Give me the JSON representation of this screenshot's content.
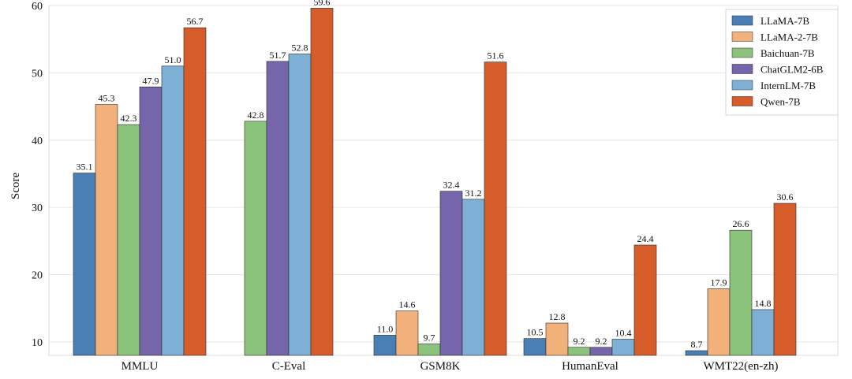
{
  "chart_data": {
    "type": "bar",
    "title": "",
    "xlabel": "",
    "ylabel": "Score",
    "ylim": [
      8,
      60
    ],
    "yticks": [
      10,
      20,
      30,
      40,
      50,
      60
    ],
    "grid": true,
    "legend_position": "top-right",
    "categories": [
      "MMLU",
      "C-Eval",
      "GSM8K",
      "HumanEval",
      "WMT22(en-zh)"
    ],
    "series": [
      {
        "name": "LLaMA-7B",
        "color": "#4a7fb5",
        "values": [
          35.1,
          null,
          11.0,
          10.5,
          8.7
        ]
      },
      {
        "name": "LLaMA-2-7B",
        "color": "#f2b07a",
        "values": [
          45.3,
          null,
          14.6,
          12.8,
          17.9
        ]
      },
      {
        "name": "Baichuan-7B",
        "color": "#8cc37c",
        "values": [
          42.3,
          42.8,
          9.7,
          9.2,
          26.6
        ]
      },
      {
        "name": "ChatGLM2-6B",
        "color": "#7566ab",
        "values": [
          47.9,
          51.7,
          32.4,
          9.2,
          null
        ]
      },
      {
        "name": "InternLM-7B",
        "color": "#7eb0d6",
        "values": [
          51.0,
          52.8,
          31.2,
          10.4,
          14.8
        ]
      },
      {
        "name": "Qwen-7B",
        "color": "#d65d2a",
        "values": [
          56.7,
          59.6,
          51.6,
          24.4,
          30.6
        ]
      }
    ]
  }
}
